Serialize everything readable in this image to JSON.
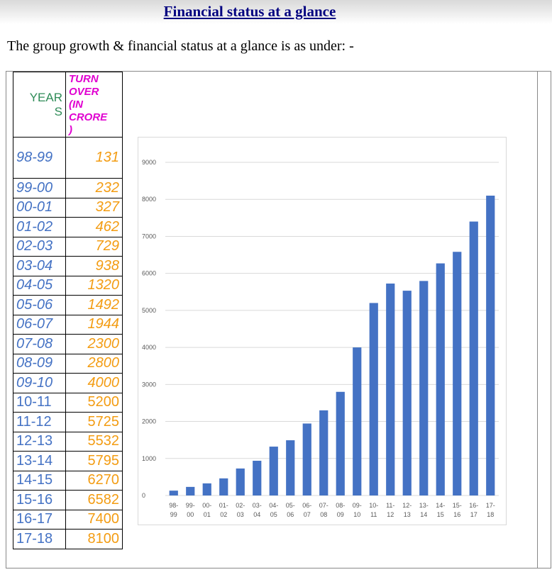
{
  "title": "Financial status at a glance",
  "intro": "The group growth & financial status at a glance is as under: -",
  "table": {
    "header_year_a": "YEAR",
    "header_year_b": "S",
    "header_turnover_lines": [
      "TURN",
      "OVER",
      "(IN",
      "CRORE",
      ")"
    ],
    "rows": [
      {
        "year": "98-99",
        "value": "131"
      },
      {
        "year": "99-00",
        "value": "232"
      },
      {
        "year": "00-01",
        "value": "327"
      },
      {
        "year": "01-02",
        "value": "462"
      },
      {
        "year": "02-03",
        "value": "729"
      },
      {
        "year": "03-04",
        "value": "938"
      },
      {
        "year": "04-05",
        "value": "1320"
      },
      {
        "year": "05-06",
        "value": "1492"
      },
      {
        "year": "06-07",
        "value": "1944"
      },
      {
        "year": "07-08",
        "value": "2300"
      },
      {
        "year": "08-09",
        "value": "2800"
      },
      {
        "year": "09-10",
        "value": "4000"
      },
      {
        "year": "10-11",
        "value": "5200"
      },
      {
        "year": "11-12",
        "value": "5725"
      },
      {
        "year": "12-13",
        "value": "5532"
      },
      {
        "year": "13-14",
        "value": "5795"
      },
      {
        "year": "14-15",
        "value": "6270"
      },
      {
        "year": "15-16",
        "value": "6582"
      },
      {
        "year": "16-17",
        "value": "7400"
      },
      {
        "year": "17-18",
        "value": "8100"
      }
    ]
  },
  "colors": {
    "title": "#000080",
    "year": "#4472c4",
    "turnover": "#f39c12",
    "year_header": "#2e8b57",
    "turnover_header": "#e000d0",
    "bar": "#4472c4"
  },
  "chart_data": {
    "type": "bar",
    "categories_top": [
      "98-",
      "99-",
      "00-",
      "01-",
      "02-",
      "03-",
      "04-",
      "05-",
      "06-",
      "07-",
      "08-",
      "09-",
      "10-",
      "11-",
      "12-",
      "13-",
      "14-",
      "15-",
      "16-",
      "17-"
    ],
    "categories_bottom": [
      "99",
      "00",
      "01",
      "02",
      "03",
      "04",
      "05",
      "06",
      "07",
      "08",
      "09",
      "10",
      "11",
      "12",
      "13",
      "14",
      "15",
      "16",
      "17",
      "18"
    ],
    "values": [
      131,
      232,
      327,
      462,
      729,
      938,
      1320,
      1492,
      1944,
      2300,
      2800,
      4000,
      5200,
      5725,
      5532,
      5795,
      6270,
      6582,
      7400,
      8100
    ],
    "yticks": [
      0,
      1000,
      2000,
      3000,
      4000,
      5000,
      6000,
      7000,
      8000,
      9000
    ],
    "ylim": [
      0,
      9000
    ],
    "grid": true,
    "legend": "none"
  }
}
